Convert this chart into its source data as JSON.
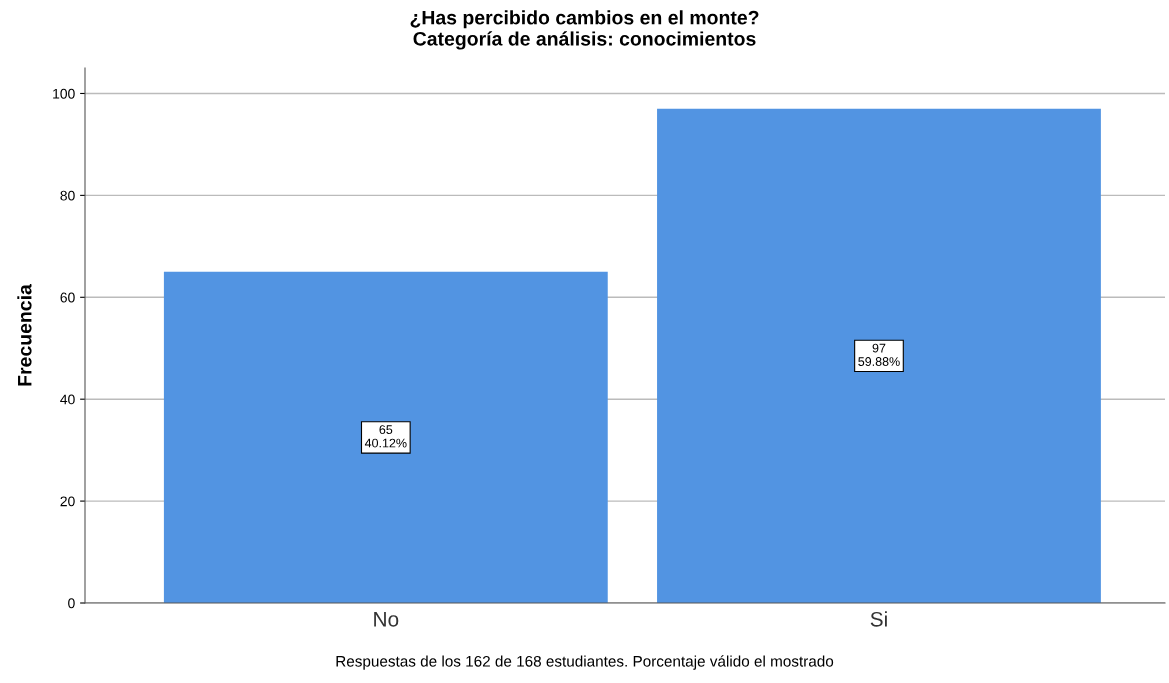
{
  "chart_data": {
    "type": "bar",
    "title": "¿Has percibido cambios en el monte?\nCategoría de análisis: conocimientos",
    "ylabel": "Frecuencia",
    "categories": [
      "No",
      "Si"
    ],
    "values": [
      65,
      97
    ],
    "color": "#5294e2",
    "value_labels": [
      "65\n40.12%",
      "97\n59.88%"
    ],
    "ylim": [
      0,
      105
    ],
    "yticks": [
      0,
      20,
      40,
      60,
      80,
      100
    ],
    "grid": "y",
    "annotations": [
      "Respuestas de los 162 de 168 estudiantes. Porcentaje válido el mostrado"
    ]
  }
}
